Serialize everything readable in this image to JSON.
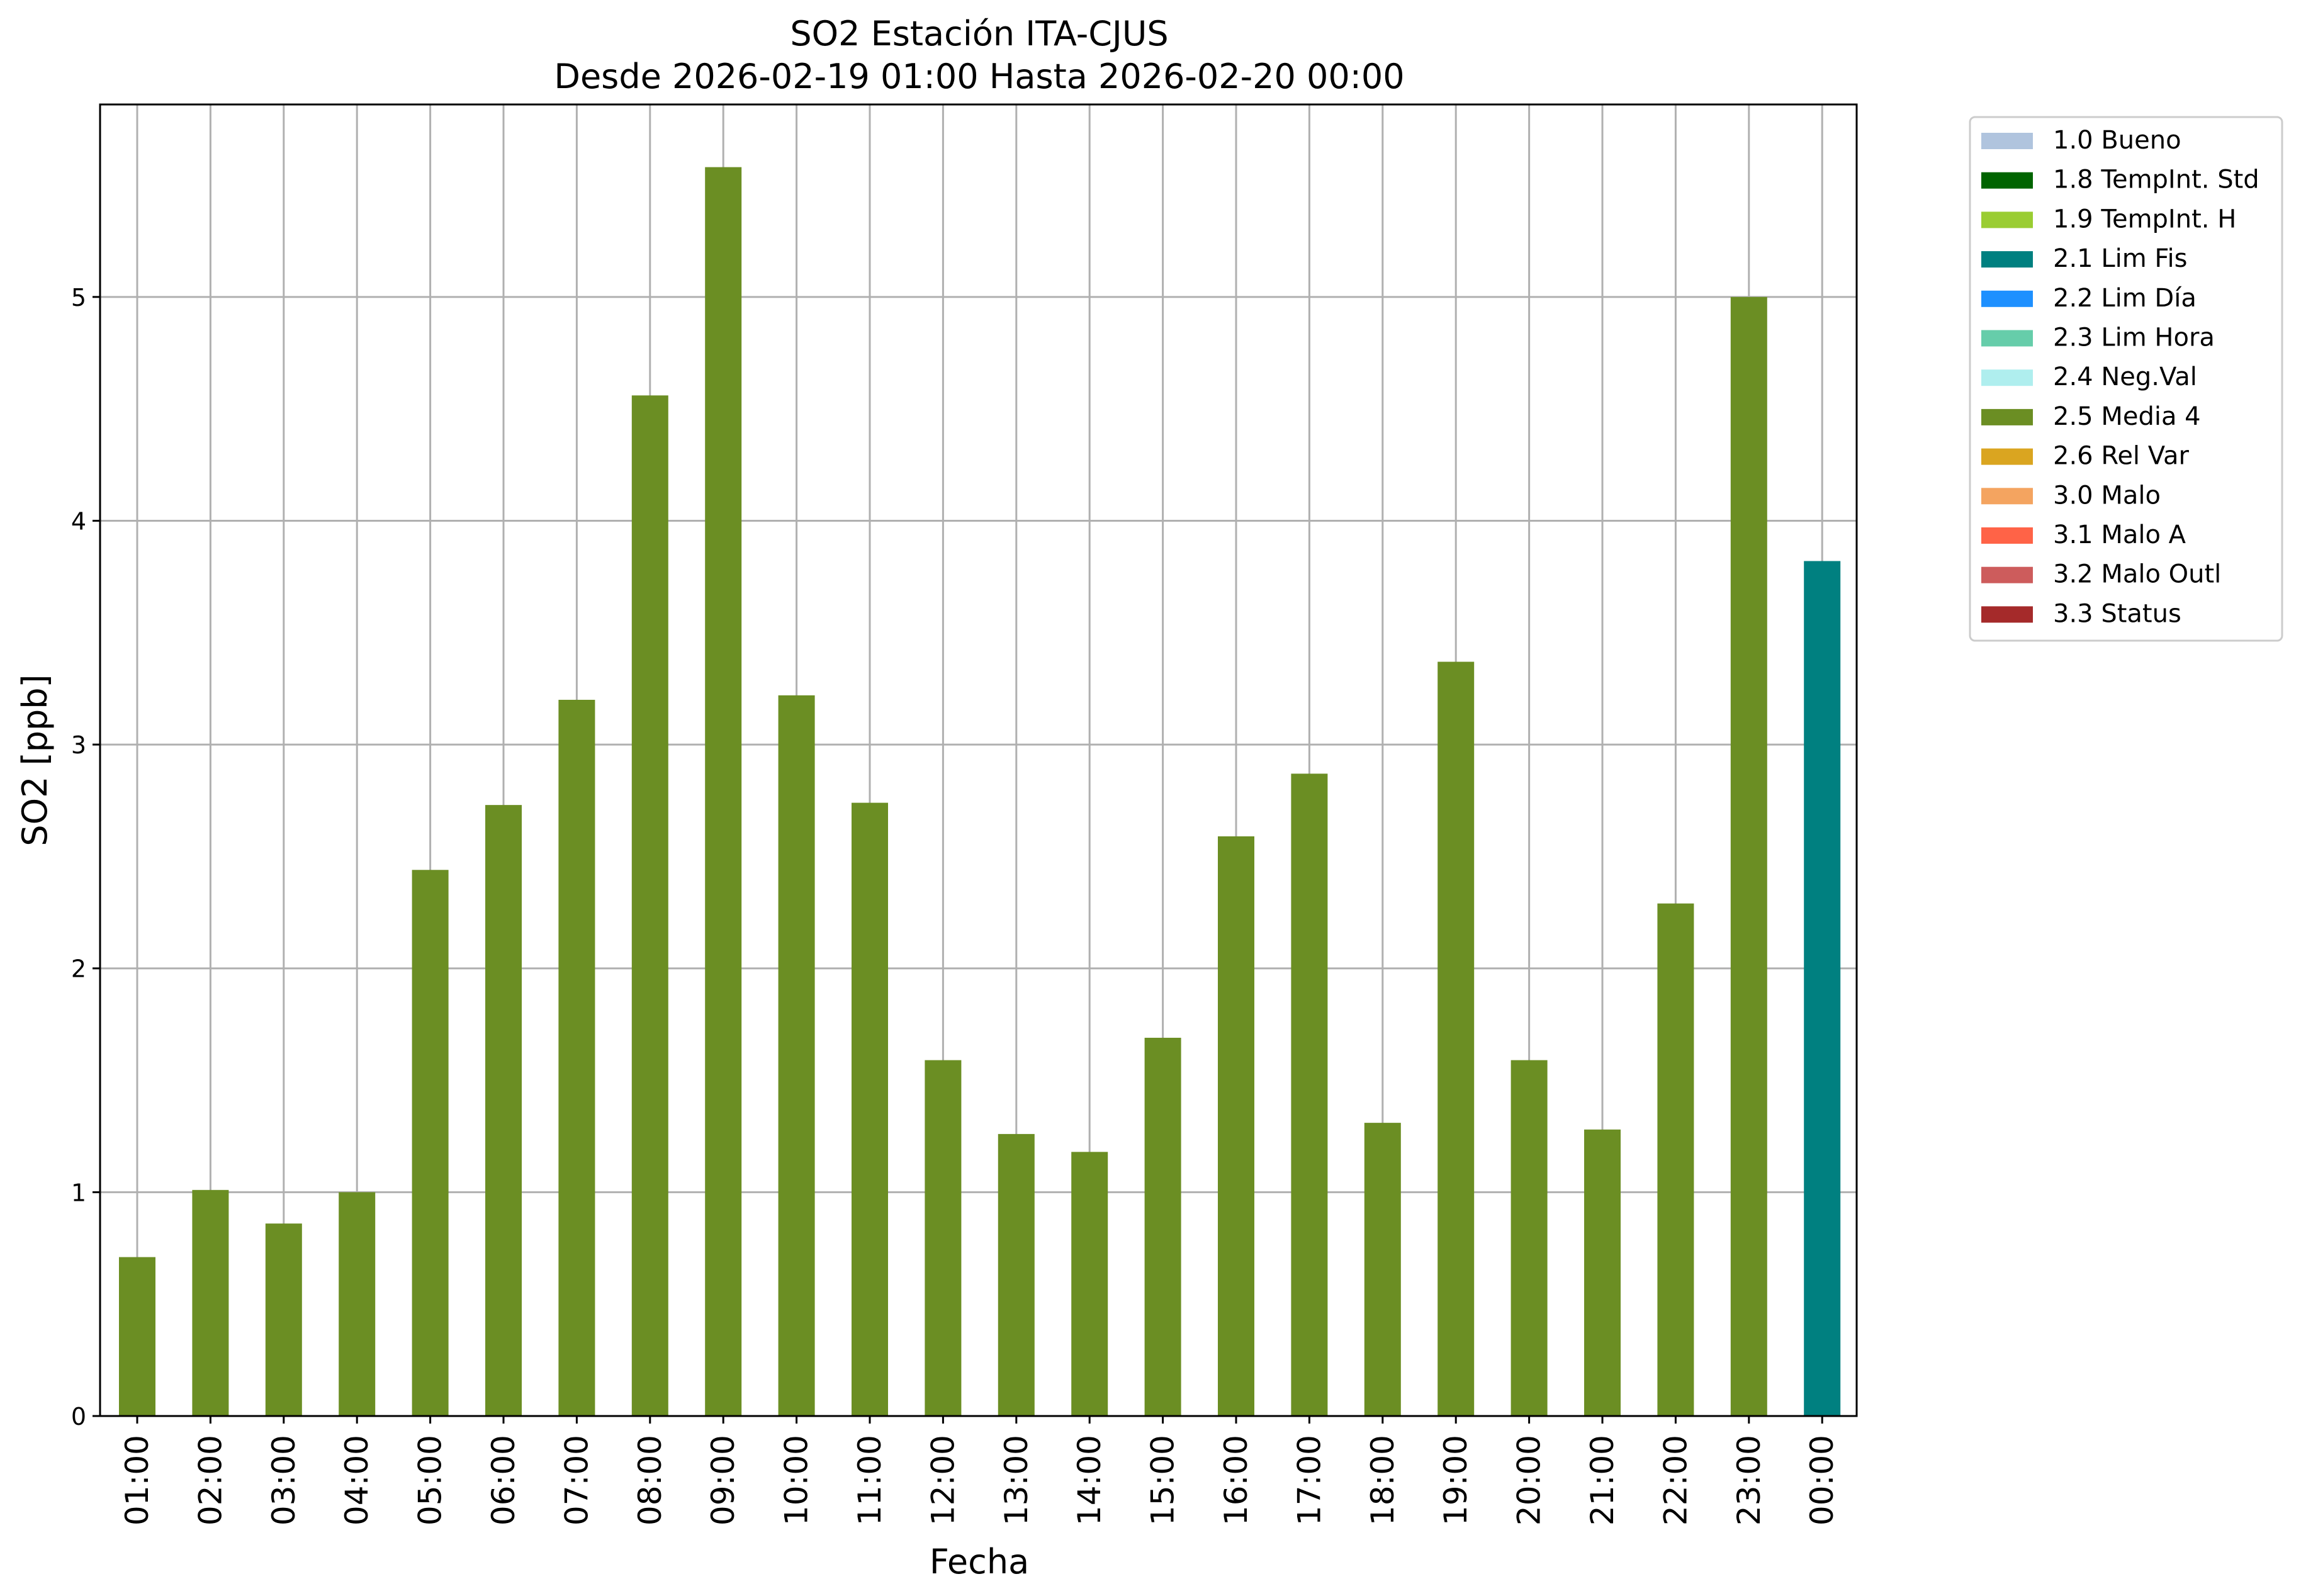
{
  "chart_data": {
    "type": "bar",
    "title": "SO2 Estación ITA-CJUS",
    "subtitle": "Desde 2026-02-19 01:00 Hasta 2026-02-20 00:00",
    "xlabel": "Fecha",
    "ylabel": "SO2 [ppb]",
    "ylim": [
      0,
      5.86
    ],
    "yticks": [
      0,
      1,
      2,
      3,
      4,
      5
    ],
    "grid": true,
    "legend_position": "outside-top-right",
    "categories": [
      "01:00",
      "02:00",
      "03:00",
      "04:00",
      "05:00",
      "06:00",
      "07:00",
      "08:00",
      "09:00",
      "10:00",
      "11:00",
      "12:00",
      "13:00",
      "14:00",
      "15:00",
      "16:00",
      "17:00",
      "18:00",
      "19:00",
      "20:00",
      "21:00",
      "22:00",
      "23:00",
      "00:00"
    ],
    "values": [
      0.71,
      1.01,
      0.86,
      1.0,
      2.44,
      2.73,
      3.2,
      4.56,
      5.58,
      3.22,
      2.74,
      1.59,
      1.26,
      1.18,
      1.69,
      2.59,
      2.87,
      1.31,
      3.37,
      1.59,
      1.28,
      2.29,
      5.0,
      3.82
    ],
    "flags": [
      "2.5 Media 4",
      "2.5 Media 4",
      "2.5 Media 4",
      "2.5 Media 4",
      "2.5 Media 4",
      "2.5 Media 4",
      "2.5 Media 4",
      "2.5 Media 4",
      "2.5 Media 4",
      "2.5 Media 4",
      "2.5 Media 4",
      "2.5 Media 4",
      "2.5 Media 4",
      "2.5 Media 4",
      "2.5 Media 4",
      "2.5 Media 4",
      "2.5 Media 4",
      "2.5 Media 4",
      "2.5 Media 4",
      "2.5 Media 4",
      "2.5 Media 4",
      "2.5 Media 4",
      "2.5 Media 4",
      "2.1 Lim Fis"
    ],
    "legend": [
      {
        "label": "1.0 Bueno",
        "color": "#b0c4de"
      },
      {
        "label": "1.8 TempInt. Std",
        "color": "#006400"
      },
      {
        "label": "1.9 TempInt. H",
        "color": "#9acd32"
      },
      {
        "label": "2.1 Lim Fis",
        "color": "#008080"
      },
      {
        "label": "2.2 Lim Día",
        "color": "#1e90ff"
      },
      {
        "label": "2.3 Lim Hora",
        "color": "#66cdaa"
      },
      {
        "label": "2.4 Neg.Val",
        "color": "#afeeee"
      },
      {
        "label": "2.5 Media 4",
        "color": "#6b8e23"
      },
      {
        "label": "2.6 Rel Var",
        "color": "#daa520"
      },
      {
        "label": "3.0 Malo",
        "color": "#f4a460"
      },
      {
        "label": "3.1 Malo A",
        "color": "#ff6347"
      },
      {
        "label": "3.2 Malo Outl",
        "color": "#cd5c5c"
      },
      {
        "label": "3.3 Status",
        "color": "#a52a2a"
      }
    ]
  }
}
